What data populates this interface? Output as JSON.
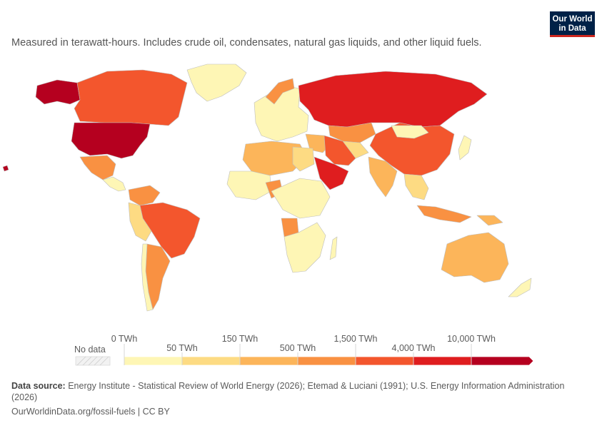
{
  "subtitle": "Measured in terawatt-hours. Includes crude oil, condensates, natural gas liquids, and other liquid fuels.",
  "logo": {
    "line1": "Our World",
    "line2": "in Data"
  },
  "legend": {
    "no_data_label": "No data",
    "bins": [
      {
        "from": "0 TWh",
        "to": "50 TWh",
        "color": "#fef6b5"
      },
      {
        "from": "50 TWh",
        "to": "150 TWh",
        "color": "#fddb83"
      },
      {
        "from": "150 TWh",
        "to": "500 TWh",
        "color": "#fcb55a"
      },
      {
        "from": "500 TWh",
        "to": "1,500 TWh",
        "color": "#f99142"
      },
      {
        "from": "1,500 TWh",
        "to": "4,000 TWh",
        "color": "#f3562d"
      },
      {
        "from": "4,000 TWh",
        "to": "10,000 TWh",
        "color": "#df1d1f"
      },
      {
        "from": "10,000 TWh",
        "to": "",
        "color": "#b5001f"
      }
    ],
    "labels_top": [
      "0 TWh",
      "150 TWh",
      "1,500 TWh",
      "10,000 TWh"
    ],
    "labels_bottom": [
      "50 TWh",
      "500 TWh",
      "4,000 TWh"
    ]
  },
  "footer": {
    "source_label": "Data source:",
    "source_text": "Energy Institute - Statistical Review of World Energy (2026); Etemad & Luciani (1991); U.S. Energy Information Administration (2026)",
    "site": "OurWorldinData.org/fossil-fuels | CC BY"
  },
  "colors": {
    "bin0": "#fef6b5",
    "bin1": "#fddb83",
    "bin2": "#fcb55a",
    "bin3": "#f99142",
    "bin4": "#f3562d",
    "bin5": "#df1d1f",
    "bin6": "#b5001f",
    "border": "#bdbdbd"
  },
  "regions": [
    {
      "name": "United States",
      "bin": 6
    },
    {
      "name": "Alaska",
      "bin": 6
    },
    {
      "name": "Canada",
      "bin": 4
    },
    {
      "name": "Greenland",
      "bin": 0
    },
    {
      "name": "Mexico",
      "bin": 3
    },
    {
      "name": "Brazil",
      "bin": 4
    },
    {
      "name": "Argentina",
      "bin": 3
    },
    {
      "name": "Russia",
      "bin": 5
    },
    {
      "name": "China",
      "bin": 4
    },
    {
      "name": "Saudi Arabia",
      "bin": 5
    },
    {
      "name": "Iran",
      "bin": 4
    },
    {
      "name": "India",
      "bin": 2
    },
    {
      "name": "Australia",
      "bin": 2
    },
    {
      "name": "Nigeria",
      "bin": 3
    },
    {
      "name": "Angola",
      "bin": 3
    },
    {
      "name": "Kazakhstan",
      "bin": 3
    }
  ]
}
